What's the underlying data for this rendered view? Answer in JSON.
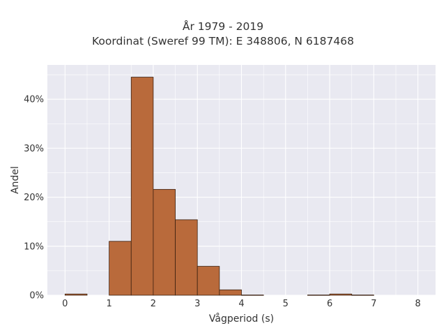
{
  "header": {
    "title_line1": "År 1979 - 2019",
    "title_line2": "Koordinat (Sweref 99 TM): E 348806, N 6187468"
  },
  "chart_data": {
    "type": "bar",
    "title": "År 1979 - 2019",
    "subtitle": "Koordinat (Sweref 99 TM): E 348806, N 6187468",
    "xlabel": "Vågperiod (s)",
    "ylabel": "Andel",
    "bin_width": 0.5,
    "bins": [
      {
        "x0": 0.0,
        "x1": 0.5,
        "value": 0.25
      },
      {
        "x0": 1.0,
        "x1": 1.5,
        "value": 11.0
      },
      {
        "x0": 1.5,
        "x1": 2.0,
        "value": 44.5
      },
      {
        "x0": 2.0,
        "x1": 2.5,
        "value": 21.6
      },
      {
        "x0": 2.5,
        "x1": 3.0,
        "value": 15.4
      },
      {
        "x0": 3.0,
        "x1": 3.5,
        "value": 5.9
      },
      {
        "x0": 3.5,
        "x1": 4.0,
        "value": 1.1
      },
      {
        "x0": 4.0,
        "x1": 4.5,
        "value": 0.05
      },
      {
        "x0": 5.5,
        "x1": 6.0,
        "value": 0.05
      },
      {
        "x0": 6.0,
        "x1": 6.5,
        "value": 0.25
      },
      {
        "x0": 6.5,
        "x1": 7.0,
        "value": 0.05
      }
    ],
    "x_ticks": [
      "0",
      "1",
      "2",
      "3",
      "4",
      "5",
      "6",
      "7",
      "8"
    ],
    "y_ticks": [
      "0%",
      "10%",
      "20%",
      "30%",
      "40%"
    ],
    "xlim": [
      -0.4,
      8.4
    ],
    "ylim": [
      0,
      47
    ],
    "grid": true,
    "colors": {
      "bar_fill": "#b96a3b",
      "bar_edge": "#3b2010",
      "plot_background": "#e9e9f1",
      "grid": "#ffffff"
    }
  }
}
